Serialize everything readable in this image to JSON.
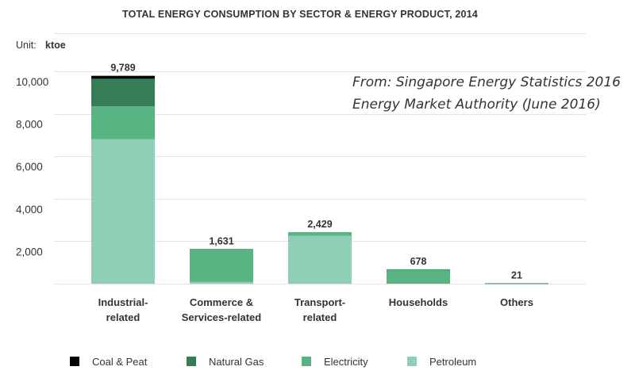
{
  "chart_data": {
    "type": "bar",
    "stacked": true,
    "title": "TOTAL ENERGY CONSUMPTION BY SECTOR & ENERGY PRODUCT, 2014",
    "unit_label": "Unit:",
    "unit": "ktoe",
    "source_lines": [
      "From: Singapore Energy Statistics 2016",
      "Energy Market Authority (June 2016)"
    ],
    "categories": [
      [
        "Industrial-",
        "related"
      ],
      [
        "Commerce &",
        "Services-related"
      ],
      [
        "Transport-",
        "related"
      ],
      [
        "Households"
      ],
      [
        "Others"
      ]
    ],
    "totals": [
      "9,789",
      "1,631",
      "2,429",
      "678",
      "21"
    ],
    "series": [
      {
        "name": "Petroleum",
        "color": "#8fcfb5",
        "values": [
          6800,
          80,
          2250,
          0,
          0
        ]
      },
      {
        "name": "Electricity",
        "color": "#58b483",
        "values": [
          1550,
          1521,
          179,
          670,
          15
        ]
      },
      {
        "name": "Natural Gas",
        "color": "#347d56",
        "values": [
          1300,
          30,
          0,
          8,
          6
        ]
      },
      {
        "name": "Coal & Peat",
        "color": "#050505",
        "values": [
          139,
          0,
          0,
          0,
          0
        ]
      }
    ],
    "legend_order": [
      "Coal & Peat",
      "Natural Gas",
      "Electricity",
      "Petroleum"
    ],
    "yticks": [
      "2,000",
      "4,000",
      "6,000",
      "8,000",
      "10,000"
    ],
    "ytick_values": [
      2000,
      4000,
      6000,
      8000,
      10000
    ],
    "ylim": [
      0,
      10000
    ],
    "grid": true,
    "legend_position": "bottom"
  }
}
